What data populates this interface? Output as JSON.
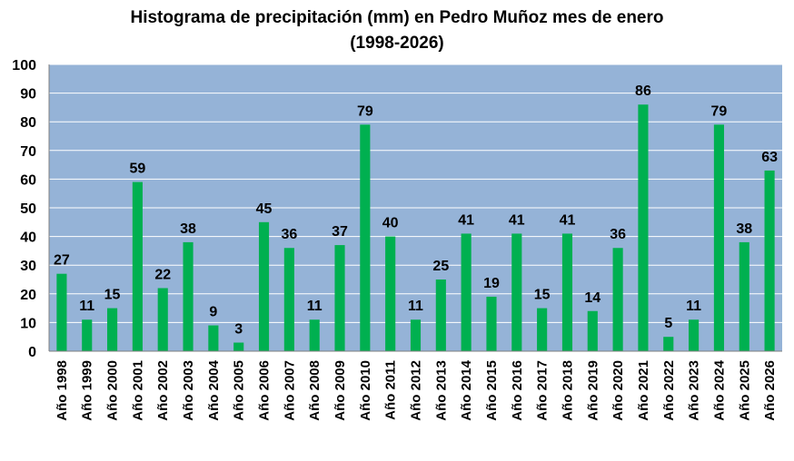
{
  "chart_data": {
    "type": "bar",
    "title_line1": "Histograma de precipitación (mm) en Pedro Muñoz mes de enero",
    "title_line2": "(1998-2026)",
    "xlabel": "",
    "ylabel": "",
    "ylim": [
      0,
      100
    ],
    "yticks": [
      0,
      10,
      20,
      30,
      40,
      50,
      60,
      70,
      80,
      90,
      100
    ],
    "grid": true,
    "legend": "none",
    "categories": [
      "Año 1998",
      "Año 1999",
      "Año 2000",
      "Año 2001",
      "Año 2002",
      "Año 2003",
      "Año 2004",
      "Año 2005",
      "Año 2006",
      "Año 2007",
      "Año 2008",
      "Año 2009",
      "Año 2010",
      "Año 2011",
      "Año 2012",
      "Año 2013",
      "Año 2014",
      "Año 2015",
      "Año 2016",
      "Año 2017",
      "Año 2018",
      "Año 2019",
      "Año 2020",
      "Año 2021",
      "Año 2022",
      "Año 2023",
      "Año 2024",
      "Año 2025",
      "Año 2026"
    ],
    "values": [
      27,
      11,
      15,
      59,
      22,
      38,
      9,
      3,
      45,
      36,
      11,
      37,
      79,
      40,
      11,
      25,
      41,
      19,
      41,
      15,
      41,
      14,
      36,
      86,
      5,
      11,
      79,
      38,
      63
    ],
    "colors": {
      "bar": "#00b050",
      "plot_background": "#95b3d7",
      "gridline": "#ffffff",
      "axis": "#808080"
    }
  }
}
